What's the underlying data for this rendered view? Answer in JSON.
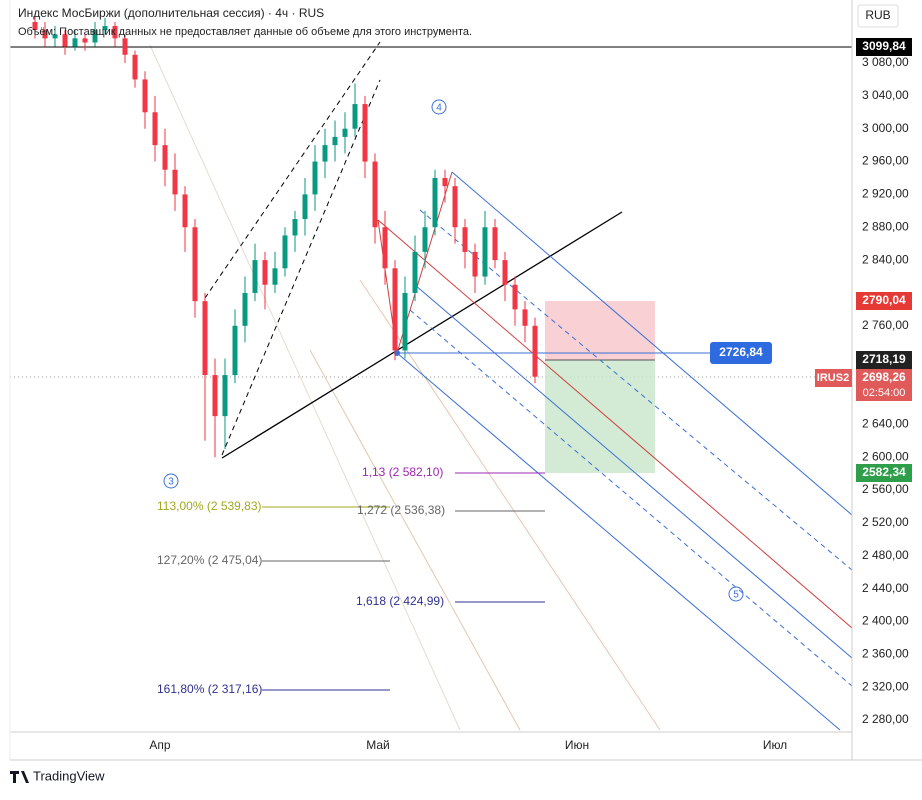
{
  "header": {
    "title": "Индекс МосБиржи (дополнительная сессия) · 4ч · RUS",
    "volume_note": "Объём: Поставщик данных не предоставляет данные об объеме для этого инструмента.",
    "currency": "RUB"
  },
  "price_axis": [
    "3 080,00",
    "3 040,00",
    "3 000,00",
    "2 960,00",
    "2 920,00",
    "2 880,00",
    "2 840,00",
    "2 800,00",
    "2 760,00",
    "2 720,00",
    "2 680,00",
    "2 640,00",
    "2 600,00",
    "2 560,00",
    "2 520,00",
    "2 480,00",
    "2 440,00",
    "2 400,00",
    "2 360,00",
    "2 320,00",
    "2 280,00"
  ],
  "time_axis": [
    "Апр",
    "Май",
    "Июн",
    "Июл"
  ],
  "price_tags": {
    "top_line": "3099,84",
    "stop": "2790,04",
    "entry": "2718,19",
    "symbol": "IRUS2",
    "last": "2698,26",
    "countdown": "02:54:00",
    "target": "2582,34",
    "cursor": "2726,84"
  },
  "fib_labels": [
    "1,13 (2 582,10)",
    "113,00% (2 539,83)",
    "1,272 (2 536,38)",
    "127,20% (2 475,04)",
    "1,618 (2 424,99)",
    "161,80% (2 317,16)"
  ],
  "waves": [
    "3",
    "4",
    "5"
  ],
  "brand": "TradingView",
  "candles": [
    [
      3130,
      3140,
      3110,
      3120
    ],
    [
      3120,
      3130,
      3100,
      3110
    ],
    [
      3110,
      3125,
      3100,
      3115
    ],
    [
      3115,
      3120,
      3090,
      3100
    ],
    [
      3100,
      3120,
      3095,
      3110
    ],
    [
      3110,
      3115,
      3095,
      3105
    ],
    [
      3105,
      3130,
      3100,
      3120
    ],
    [
      3120,
      3135,
      3115,
      3125
    ],
    [
      3125,
      3130,
      3100,
      3110
    ],
    [
      3110,
      3115,
      3080,
      3090
    ],
    [
      3090,
      3095,
      3050,
      3060
    ],
    [
      3060,
      3070,
      3000,
      3020
    ],
    [
      3020,
      3040,
      2960,
      2980
    ],
    [
      2980,
      3000,
      2930,
      2950
    ],
    [
      2950,
      2970,
      2900,
      2920
    ],
    [
      2920,
      2930,
      2850,
      2880
    ],
    [
      2880,
      2890,
      2770,
      2790
    ],
    [
      2790,
      2800,
      2620,
      2700
    ],
    [
      2700,
      2720,
      2600,
      2650
    ],
    [
      2650,
      2720,
      2610,
      2700
    ],
    [
      2700,
      2780,
      2690,
      2760
    ],
    [
      2760,
      2820,
      2740,
      2800
    ],
    [
      2800,
      2860,
      2790,
      2840
    ],
    [
      2840,
      2850,
      2780,
      2810
    ],
    [
      2810,
      2850,
      2800,
      2830
    ],
    [
      2830,
      2880,
      2820,
      2870
    ],
    [
      2870,
      2900,
      2850,
      2890
    ],
    [
      2890,
      2940,
      2870,
      2920
    ],
    [
      2920,
      2980,
      2900,
      2960
    ],
    [
      2960,
      3000,
      2940,
      2980
    ],
    [
      2980,
      3010,
      2960,
      2990
    ],
    [
      2990,
      3020,
      2970,
      3000
    ],
    [
      3000,
      3055,
      2990,
      3030
    ],
    [
      3030,
      3040,
      2940,
      2960
    ],
    [
      2960,
      2970,
      2860,
      2880
    ],
    [
      2880,
      2900,
      2810,
      2830
    ],
    [
      2830,
      2840,
      2718,
      2730
    ],
    [
      2730,
      2820,
      2720,
      2800
    ],
    [
      2800,
      2870,
      2790,
      2850
    ],
    [
      2850,
      2900,
      2830,
      2880
    ],
    [
      2880,
      2950,
      2870,
      2940
    ],
    [
      2940,
      2950,
      2910,
      2930
    ],
    [
      2930,
      2940,
      2860,
      2880
    ],
    [
      2880,
      2890,
      2830,
      2850
    ],
    [
      2850,
      2860,
      2800,
      2820
    ],
    [
      2820,
      2900,
      2810,
      2880
    ],
    [
      2880,
      2890,
      2830,
      2840
    ],
    [
      2840,
      2850,
      2790,
      2810
    ],
    [
      2810,
      2820,
      2760,
      2780
    ],
    [
      2780,
      2790,
      2740,
      2760
    ],
    [
      2760,
      2770,
      2690,
      2698
    ]
  ]
}
